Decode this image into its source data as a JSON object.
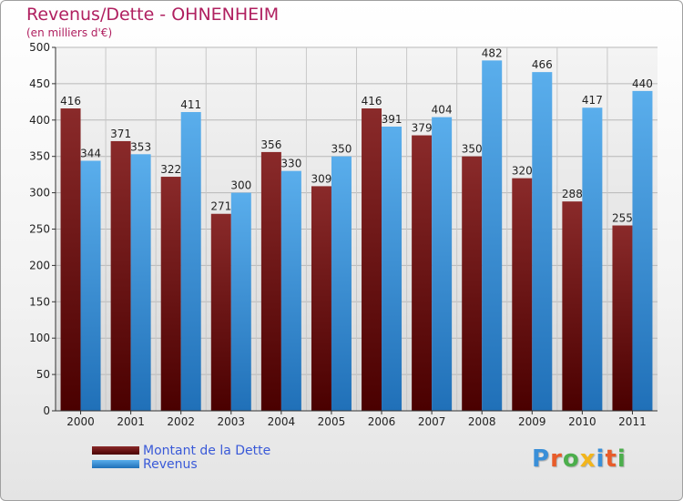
{
  "title": "Revenus/Dette - OHNENHEIM",
  "subtitle": "(en milliers d'€)",
  "logo_text": "Proxiti",
  "logo_colors": [
    "#3a8fd8",
    "#e85c2a",
    "#4cae4c",
    "#f2b51c",
    "#3a8fd8",
    "#e85c2a",
    "#4cae4c"
  ],
  "chart_data": {
    "type": "bar",
    "categories": [
      "2000",
      "2001",
      "2002",
      "2003",
      "2004",
      "2005",
      "2006",
      "2007",
      "2008",
      "2009",
      "2010",
      "2011"
    ],
    "series": [
      {
        "name": "Montant de la Dette",
        "color": "#7a1a1a",
        "values": [
          416,
          371,
          322,
          271,
          356,
          309,
          416,
          379,
          350,
          320,
          288,
          255
        ]
      },
      {
        "name": "Revenus",
        "color": "#3e9de0",
        "values": [
          344,
          353,
          411,
          300,
          330,
          350,
          391,
          404,
          482,
          466,
          417,
          440
        ]
      }
    ],
    "ylim": [
      0,
      500
    ],
    "yticks": [
      0,
      50,
      100,
      150,
      200,
      250,
      300,
      350,
      400,
      450,
      500
    ],
    "grid": true,
    "legend_position": "bottom-left"
  }
}
